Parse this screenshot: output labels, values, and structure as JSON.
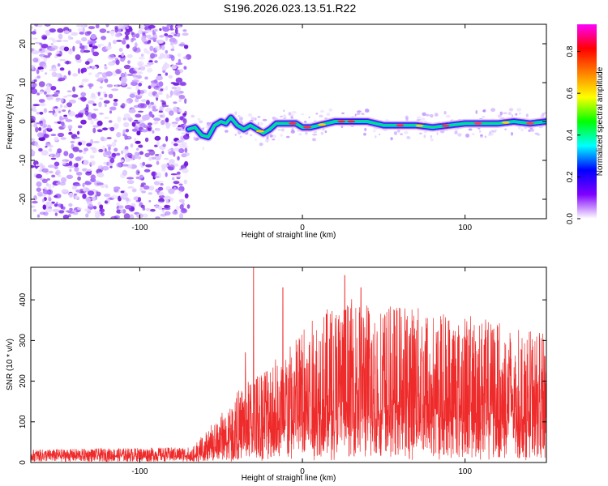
{
  "title": "S196.2026.023.13.51.R22",
  "chart_data": [
    {
      "type": "heatmap",
      "name": "spectrogram",
      "xlabel": "Height of straight line (km)",
      "ylabel": "Frequency (Hz)",
      "xlim": [
        -167,
        150
      ],
      "ylim": [
        -25,
        25
      ],
      "xticks": [
        -100,
        0,
        100
      ],
      "yticks": [
        -20,
        -10,
        0,
        10,
        20
      ],
      "noise_region_x": [
        -167,
        -70
      ],
      "trace": [
        [
          -70,
          -2
        ],
        [
          -66,
          -1.5
        ],
        [
          -62,
          -3.5
        ],
        [
          -58,
          -4
        ],
        [
          -54,
          -1
        ],
        [
          -50,
          0
        ],
        [
          -47,
          -0.5
        ],
        [
          -44,
          1
        ],
        [
          -40,
          -1
        ],
        [
          -36,
          -2
        ],
        [
          -32,
          -1
        ],
        [
          -28,
          -2
        ],
        [
          -24,
          -3
        ],
        [
          -20,
          -2
        ],
        [
          -16,
          -0.5
        ],
        [
          -12,
          -0.5
        ],
        [
          -8,
          -0.5
        ],
        [
          -4,
          -0.5
        ],
        [
          0,
          -1.5
        ],
        [
          5,
          -1.5
        ],
        [
          10,
          -1
        ],
        [
          20,
          0
        ],
        [
          30,
          0
        ],
        [
          40,
          0
        ],
        [
          50,
          -1
        ],
        [
          60,
          -1
        ],
        [
          70,
          -1
        ],
        [
          80,
          -1.5
        ],
        [
          90,
          -1
        ],
        [
          100,
          -0.5
        ],
        [
          110,
          -0.5
        ],
        [
          120,
          -0.5
        ],
        [
          130,
          0
        ],
        [
          140,
          -0.5
        ],
        [
          150,
          0
        ]
      ],
      "colorbar": {
        "label": "Normalized spectral amplitude",
        "range": [
          0,
          0.93
        ],
        "ticks": [
          0.0,
          0.2,
          0.4,
          0.6,
          0.8
        ],
        "tick_labels": [
          "0.0",
          "0.2",
          "0.4",
          "0.6",
          "0.8"
        ],
        "colors": [
          "#ffffff",
          "#7f00ff",
          "#0000ff",
          "#00ffff",
          "#00ff00",
          "#ffff00",
          "#ff8000",
          "#ff0000",
          "#ff00ff"
        ]
      }
    },
    {
      "type": "line",
      "name": "snr",
      "xlabel": "Height of straight line (km)",
      "ylabel": "SNR (10 * v/v)",
      "xlim": [
        -167,
        150
      ],
      "ylim": [
        0,
        480
      ],
      "xticks": [
        -100,
        0,
        100
      ],
      "yticks": [
        0,
        100,
        200,
        300,
        400
      ],
      "color": "#ee2a2a",
      "envelope": [
        [
          -167,
          15
        ],
        [
          -70,
          18
        ],
        [
          -60,
          55
        ],
        [
          -50,
          90
        ],
        [
          -40,
          130
        ],
        [
          -30,
          160
        ],
        [
          -20,
          190
        ],
        [
          -10,
          205
        ],
        [
          0,
          245
        ],
        [
          10,
          270
        ],
        [
          20,
          290
        ],
        [
          30,
          300
        ],
        [
          40,
          295
        ],
        [
          50,
          285
        ],
        [
          60,
          290
        ],
        [
          70,
          285
        ],
        [
          80,
          280
        ],
        [
          90,
          275
        ],
        [
          100,
          270
        ],
        [
          110,
          265
        ],
        [
          120,
          255
        ],
        [
          130,
          245
        ],
        [
          140,
          240
        ],
        [
          150,
          235
        ]
      ],
      "peaks": [
        [
          -30,
          480
        ],
        [
          -12,
          430
        ],
        [
          -35,
          270
        ],
        [
          26,
          460
        ],
        [
          36,
          430
        ]
      ]
    }
  ]
}
